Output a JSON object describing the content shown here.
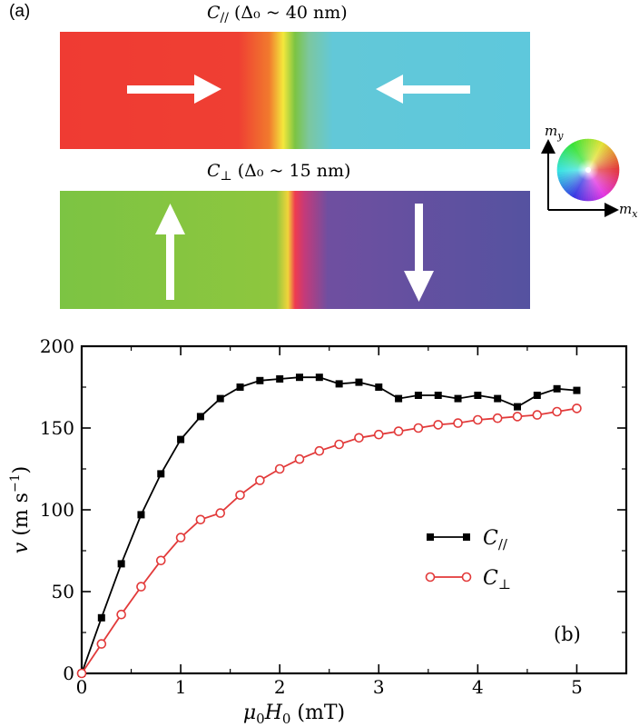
{
  "panel_a": {
    "label": "(a)",
    "top_caption": {
      "symbol": "C",
      "sub": "//",
      "rest": " (Δ₀ ~ 40 nm)"
    },
    "bottom_caption": {
      "symbol": "C",
      "sub": "⊥",
      "rest": " (Δ₀ ~ 15 nm)"
    },
    "colors": {
      "red": "#ef3b33",
      "cyan": "#5ec8dc",
      "green": "#7cc443",
      "purple": "#5552a0",
      "yellow": "#f4e83c"
    },
    "top_arrows": [
      "arrow-right-icon",
      "arrow-left-icon"
    ],
    "bottom_arrows": [
      "arrow-up-icon",
      "arrow-down-icon"
    ],
    "color_wheel": {
      "y_axis": "m_y",
      "x_axis": "m_x"
    }
  },
  "chart_data": {
    "type": "line",
    "panel_label": "(b)",
    "xlabel": "μ0H0 (mT)",
    "ylabel": "v (m s⁻¹)",
    "xlim": [
      0,
      5.5
    ],
    "ylim": [
      0,
      200
    ],
    "xticks": [
      0,
      1,
      2,
      3,
      4,
      5
    ],
    "yticks": [
      0,
      50,
      100,
      150,
      200
    ],
    "legend_position": "center-right",
    "series": [
      {
        "name": "C//",
        "marker": "filled-square",
        "color": "#000000",
        "x": [
          0,
          0.2,
          0.4,
          0.6,
          0.8,
          1.0,
          1.2,
          1.4,
          1.6,
          1.8,
          2.0,
          2.2,
          2.4,
          2.6,
          2.8,
          3.0,
          3.2,
          3.4,
          3.6,
          3.8,
          4.0,
          4.2,
          4.4,
          4.6,
          4.8,
          5.0
        ],
        "values": [
          0,
          34,
          67,
          97,
          122,
          143,
          157,
          168,
          175,
          179,
          180,
          181,
          181,
          177,
          178,
          175,
          168,
          170,
          170,
          168,
          170,
          168,
          163,
          170,
          174,
          173
        ]
      },
      {
        "name": "C⊥",
        "marker": "open-circle",
        "color": "#e23a3a",
        "x": [
          0,
          0.2,
          0.4,
          0.6,
          0.8,
          1.0,
          1.2,
          1.4,
          1.6,
          1.8,
          2.0,
          2.2,
          2.4,
          2.6,
          2.8,
          3.0,
          3.2,
          3.4,
          3.6,
          3.8,
          4.0,
          4.2,
          4.4,
          4.6,
          4.8,
          5.0
        ],
        "values": [
          0,
          18,
          36,
          53,
          69,
          83,
          94,
          98,
          109,
          118,
          125,
          131,
          136,
          140,
          144,
          146,
          148,
          150,
          152,
          153,
          155,
          156,
          157,
          158,
          160,
          162
        ]
      }
    ]
  }
}
